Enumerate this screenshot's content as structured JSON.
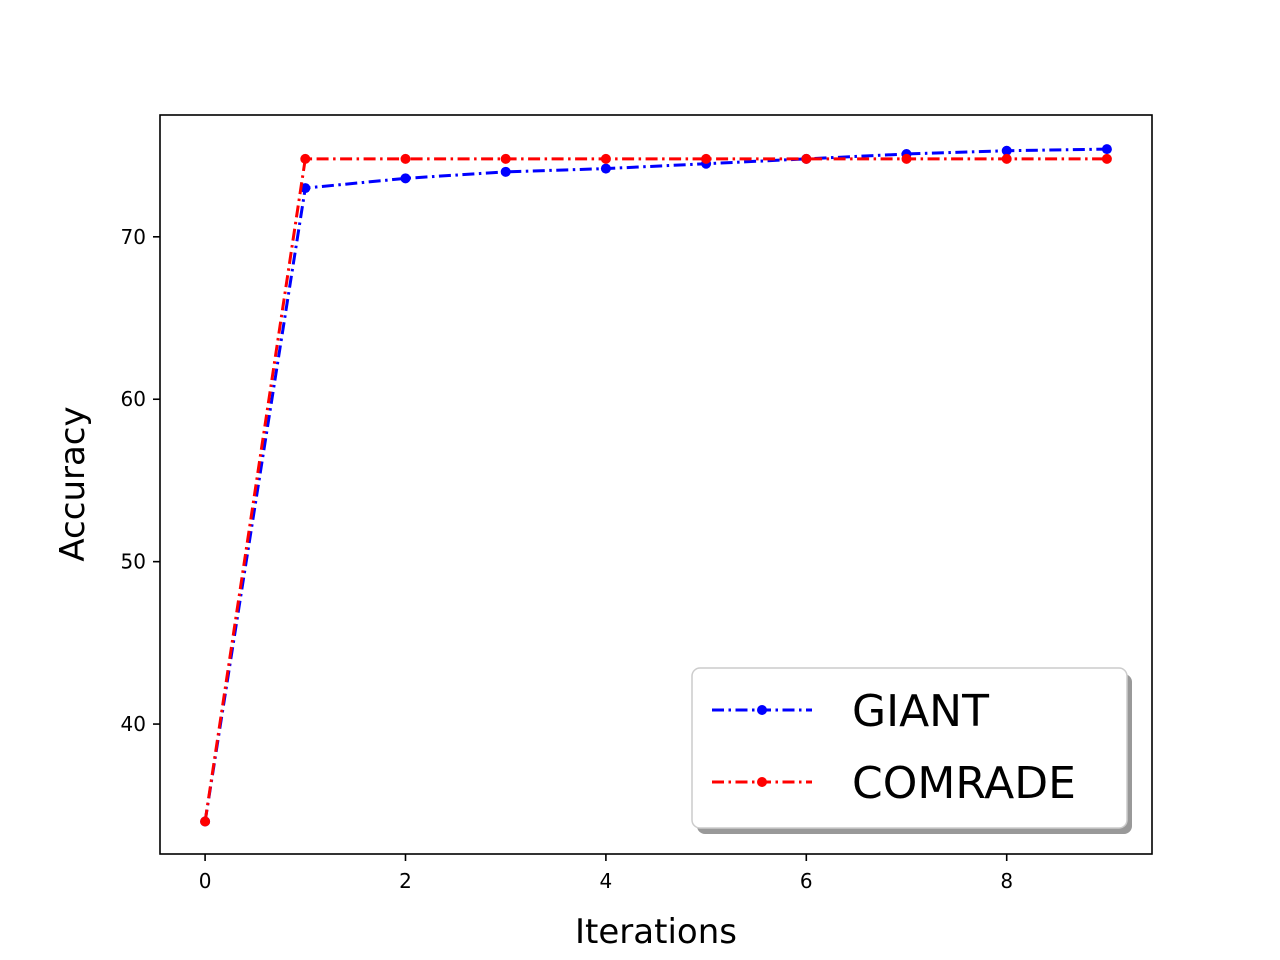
{
  "chart_data": {
    "type": "line",
    "title": "",
    "xlabel": "Iterations",
    "ylabel": "Accuracy",
    "xlim": [
      -0.45,
      9.45
    ],
    "ylim": [
      32.0,
      77.5
    ],
    "x_ticks": [
      0,
      2,
      4,
      6,
      8
    ],
    "y_ticks": [
      40,
      50,
      60,
      70
    ],
    "grid": false,
    "legend_position": "lower-right",
    "x": [
      0,
      1,
      2,
      3,
      4,
      5,
      6,
      7,
      8,
      9
    ],
    "series": [
      {
        "name": "GIANT",
        "color": "#0000ff",
        "line_style": "dash-dot",
        "marker": "dot",
        "values": [
          34.0,
          73.0,
          73.6,
          74.0,
          74.2,
          74.5,
          74.8,
          75.1,
          75.3,
          75.4
        ]
      },
      {
        "name": "COMRADE",
        "color": "#ff0000",
        "line_style": "dash-dot",
        "marker": "dot",
        "values": [
          34.0,
          74.8,
          74.8,
          74.8,
          74.8,
          74.8,
          74.8,
          74.8,
          74.8,
          74.8
        ]
      }
    ]
  }
}
